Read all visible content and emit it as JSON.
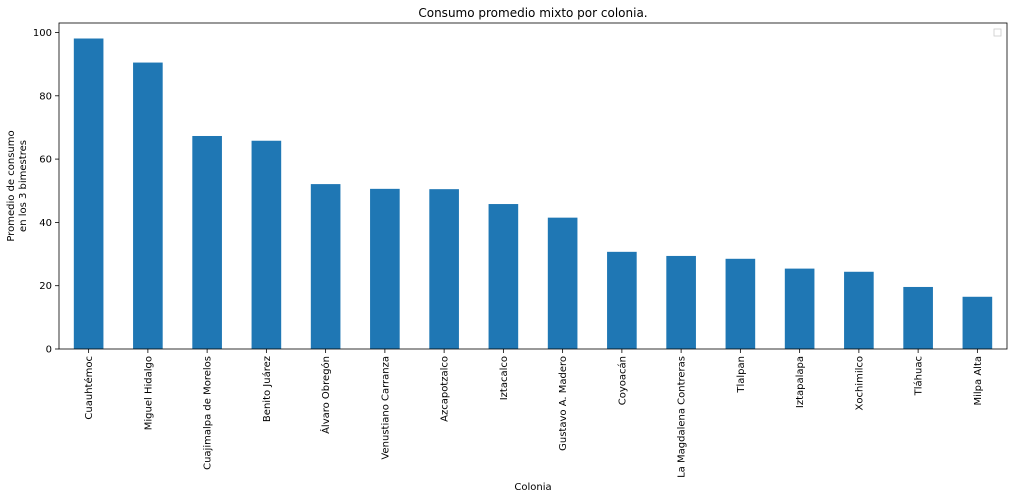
{
  "chart_data": {
    "type": "bar",
    "title": "Consumo promedio mixto por colonia.",
    "xlabel": "Colonia",
    "ylabel": [
      "Promedio de consumo",
      "en los 3 bimestres"
    ],
    "ylim": [
      0,
      103
    ],
    "yticks": [
      0,
      20,
      40,
      60,
      80,
      100
    ],
    "grid": false,
    "legend": "top-right",
    "bar_color": "#1f77b4",
    "categories": [
      "Cuauhtémoc",
      "Miguel Hidalgo",
      "Cuajimalpa de Morelos",
      "Benito Juárez",
      "Álvaro Obregón",
      "Venustiano Carranza",
      "Azcapotzalco",
      "Iztacalco",
      "Gustavo A. Madero",
      "Coyoacán",
      "La Magdalena Contreras",
      "Tlalpan",
      "Iztapalapa",
      "Xochimilco",
      "Tláhuac",
      "Milpa Alta"
    ],
    "values": [
      98.1,
      90.5,
      67.3,
      65.8,
      52.1,
      50.6,
      50.5,
      45.8,
      41.5,
      30.7,
      29.4,
      28.5,
      25.4,
      24.4,
      19.6,
      16.5
    ]
  }
}
